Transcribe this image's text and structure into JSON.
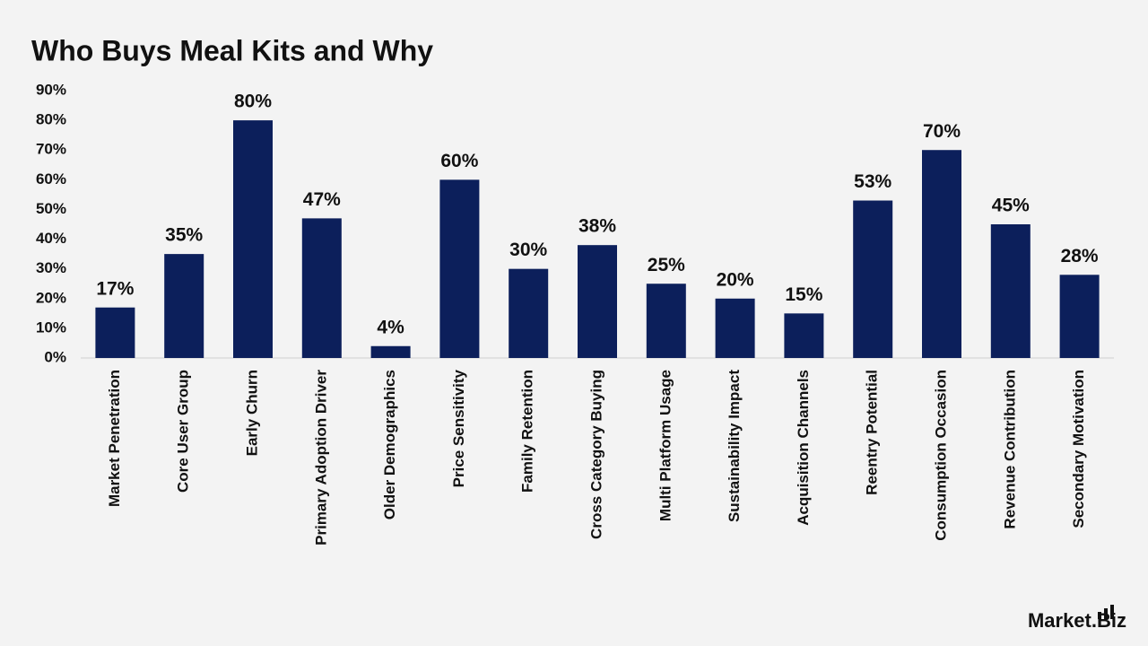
{
  "chart_data": {
    "type": "bar",
    "title": "Who Buys Meal Kits and Why",
    "categories": [
      "Market Penetration",
      "Core User Group",
      "Early Churn",
      "Primary Adoption Driver",
      "Older Demographics",
      "Price Sensitivity",
      "Family Retention",
      "Cross Category Buying",
      "Multi Platform Usage",
      "Sustainability Impact",
      "Acquisition Channels",
      "Reentry Potential",
      "Consumption Occasion",
      "Revenue Contribution",
      "Secondary Motivation"
    ],
    "values": [
      17,
      35,
      80,
      47,
      4,
      60,
      30,
      38,
      25,
      20,
      15,
      53,
      70,
      45,
      28
    ],
    "value_labels": [
      "17%",
      "35%",
      "80%",
      "47%",
      "4%",
      "60%",
      "30%",
      "38%",
      "25%",
      "20%",
      "15%",
      "53%",
      "70%",
      "45%",
      "28%"
    ],
    "color": "#0c1f5b",
    "ylim": [
      0,
      90
    ],
    "yticks": [
      {
        "value": 0,
        "label": "0%"
      },
      {
        "value": 10,
        "label": "10%"
      },
      {
        "value": 20,
        "label": "20%"
      },
      {
        "value": 30,
        "label": "30%"
      },
      {
        "value": 40,
        "label": "40%"
      },
      {
        "value": 50,
        "label": "50%"
      },
      {
        "value": 60,
        "label": "60%"
      },
      {
        "value": 70,
        "label": "70%"
      },
      {
        "value": 80,
        "label": "80%"
      },
      {
        "value": 90,
        "label": "90%"
      }
    ],
    "grid": false,
    "brand": "Market.Biz"
  }
}
